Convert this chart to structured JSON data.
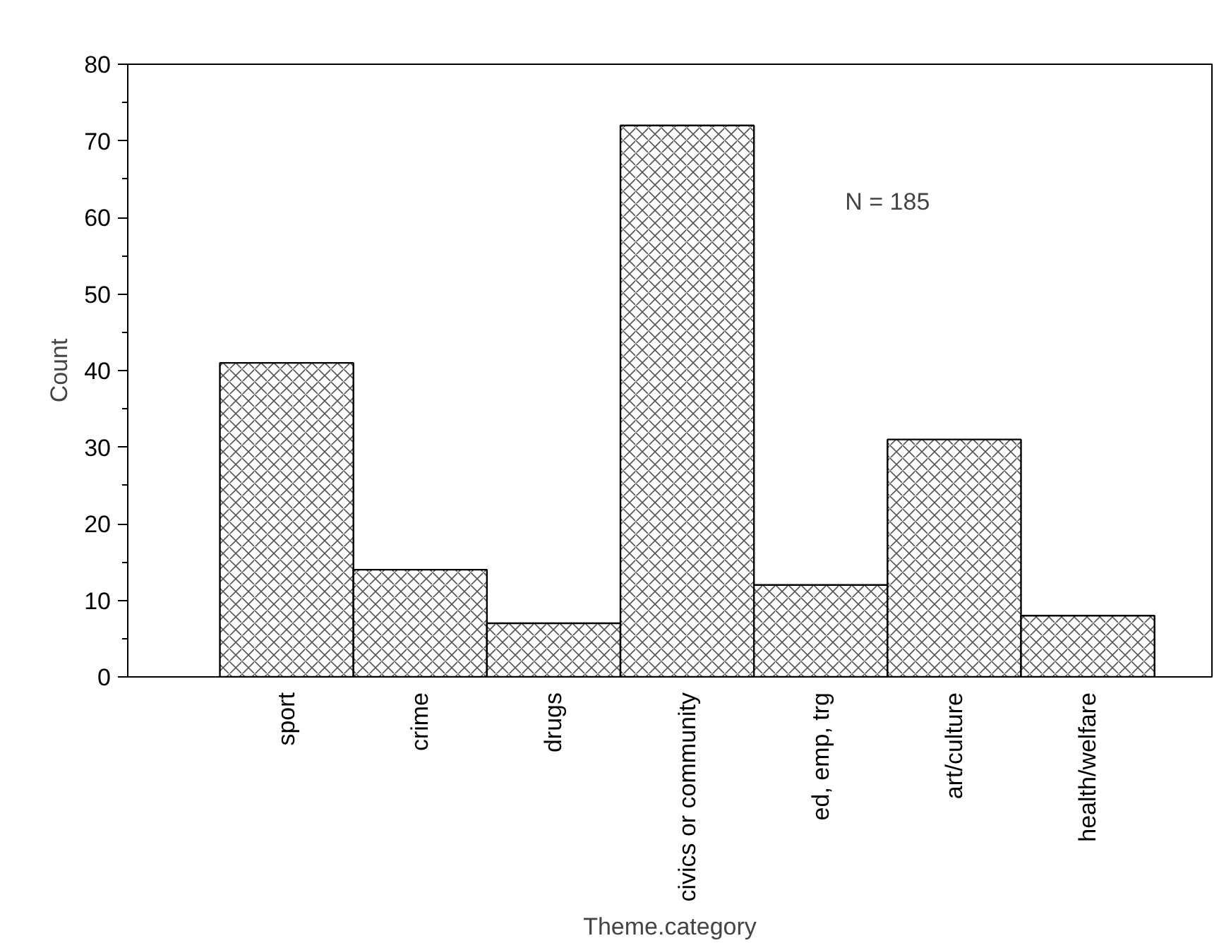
{
  "chart_data": {
    "type": "bar",
    "xlabel": "Theme.category",
    "ylabel": "Count",
    "categories": [
      "sport",
      "crime",
      "drugs",
      "civics or community",
      "ed, emp, trg",
      "art/culture",
      "health/welfare"
    ],
    "values": [
      41,
      14,
      7,
      72,
      12,
      31,
      8
    ],
    "color": "#ffffff",
    "ylim": [
      0,
      80
    ],
    "yticks": [
      0,
      10,
      20,
      30,
      40,
      50,
      60,
      70,
      80
    ],
    "grid": false,
    "annotations": [
      "N = 185"
    ]
  }
}
